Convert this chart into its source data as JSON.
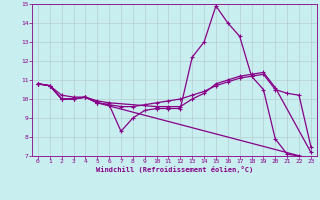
{
  "xlabel": "Windchill (Refroidissement éolien,°C)",
  "bg_color": "#c8eef0",
  "line_color": "#880088",
  "grid_color": "#b0c8c8",
  "xlim": [
    -0.5,
    23.5
  ],
  "ylim": [
    7,
    15
  ],
  "xticks": [
    0,
    1,
    2,
    3,
    4,
    5,
    6,
    7,
    8,
    9,
    10,
    11,
    12,
    13,
    14,
    15,
    16,
    17,
    18,
    19,
    20,
    21,
    22,
    23
  ],
  "yticks": [
    7,
    8,
    9,
    10,
    11,
    12,
    13,
    14,
    15
  ],
  "line1_x": [
    0,
    1,
    2,
    3,
    4,
    5,
    6,
    7,
    8,
    9,
    10,
    11,
    12,
    13,
    14,
    15,
    16,
    17,
    18,
    19,
    20,
    21,
    22,
    23
  ],
  "line1_y": [
    10.8,
    10.7,
    10.0,
    10.0,
    10.1,
    9.8,
    9.7,
    8.3,
    9.0,
    9.4,
    9.5,
    9.5,
    9.5,
    12.2,
    13.0,
    14.9,
    14.0,
    13.3,
    11.2,
    10.5,
    7.9,
    7.1,
    7.0,
    6.85
  ],
  "line2_x": [
    0,
    1,
    2,
    3,
    4,
    5,
    6,
    7,
    8,
    9,
    10,
    11,
    12,
    13,
    14,
    15,
    16,
    17,
    18,
    19,
    20,
    21,
    22,
    23
  ],
  "line2_y": [
    10.8,
    10.7,
    10.0,
    10.0,
    10.1,
    9.8,
    9.7,
    9.6,
    9.6,
    9.7,
    9.8,
    9.9,
    10.0,
    10.2,
    10.4,
    10.7,
    10.9,
    11.1,
    11.2,
    11.3,
    10.5,
    10.3,
    10.2,
    7.5
  ],
  "line3_x": [
    0,
    1,
    2,
    3,
    4,
    5,
    6,
    10,
    11,
    12,
    13,
    14,
    15,
    16,
    17,
    18,
    19,
    20,
    23
  ],
  "line3_y": [
    10.8,
    10.7,
    10.2,
    10.1,
    10.1,
    9.9,
    9.8,
    9.6,
    9.6,
    9.6,
    10.0,
    10.3,
    10.8,
    11.0,
    11.2,
    11.3,
    11.4,
    10.6,
    7.2
  ],
  "line4_x": [
    0,
    1,
    2,
    3,
    4,
    5,
    23
  ],
  "line4_y": [
    10.8,
    10.7,
    10.0,
    10.0,
    10.1,
    9.8,
    6.85
  ]
}
